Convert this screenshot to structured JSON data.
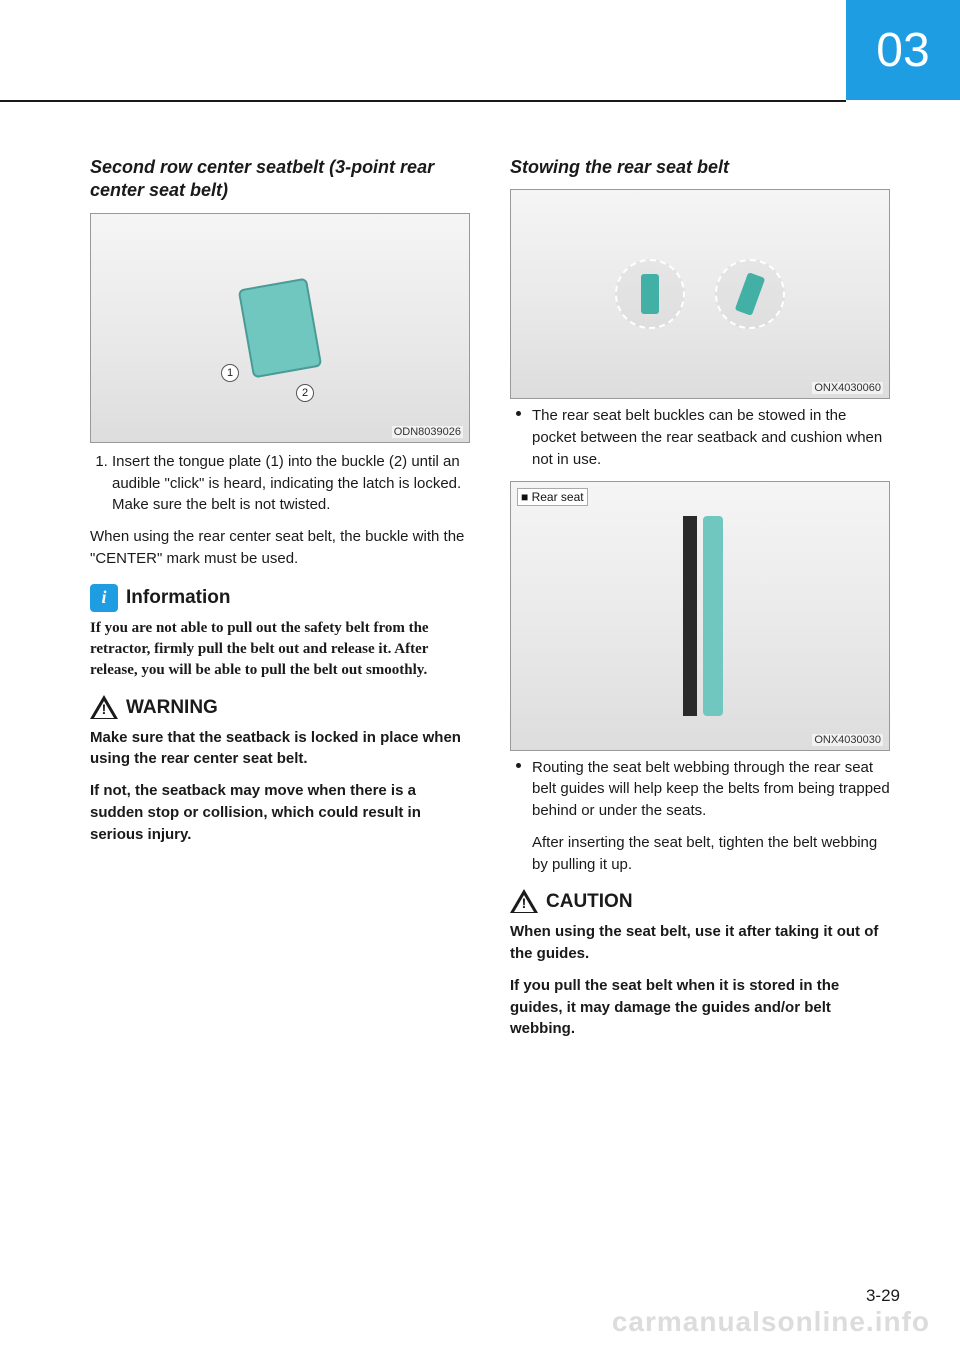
{
  "chapter": {
    "number": "03",
    "tab_bg": "#1e9de3"
  },
  "page_number": "3-29",
  "watermark": "carmanualsonline.info",
  "left": {
    "heading": "Second row center seatbelt (3-point rear center seat belt)",
    "figure1": {
      "code": "ODN8039026",
      "badge1": "1",
      "badge2": "2",
      "alt": "[seat belt buckle illustration]"
    },
    "step1": "Insert the tongue plate (1) into the buckle (2) until an audible \"click\" is heard, indicating the latch is locked. Make sure the belt is not twisted.",
    "after_steps": "When using the rear center seat belt, the buckle with the \"CENTER\" mark must be used.",
    "info": {
      "title": "Information",
      "body": "If you are not able to pull out the safety belt from the retractor, firmly pull the belt out and release it. After release, you will be able to pull the belt out smoothly."
    },
    "warning": {
      "title": "WARNING",
      "body1": "Make sure that the seatback is locked in place when using the rear center seat belt.",
      "body2": "If not, the seatback may move when there is a sudden stop or collision, which could result in serious injury."
    }
  },
  "right": {
    "heading": "Stowing the rear seat belt",
    "figure1": {
      "code": "ONX4030060",
      "alt": "[rear seat belt stow pockets]"
    },
    "bullet1": "The rear seat belt buckles can be stowed in the pocket between the rear seatback and cushion when not in use.",
    "figure2": {
      "code": "ONX4030030",
      "label": "■ Rear seat",
      "alt": "[rear seat belt guide on pillar]"
    },
    "bullet2": "Routing the seat belt webbing through the rear seat belt guides will help keep the belts from being trapped behind or under the seats.",
    "after_bullet2": "After inserting the seat belt, tighten the belt webbing by pulling it up.",
    "caution": {
      "title": "CAUTION",
      "body1": "When using the seat belt, use it after taking it out of the guides.",
      "body2": "If you pull the seat belt when it is stored in the guides, it may damage the guides and/or belt webbing."
    }
  }
}
